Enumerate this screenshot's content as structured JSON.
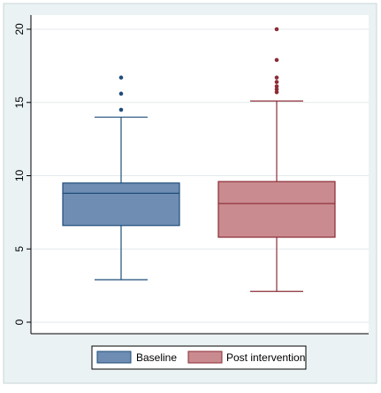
{
  "chart_data": {
    "type": "box",
    "title": "",
    "xlabel": "",
    "ylabel": "",
    "ylim": [
      0,
      20
    ],
    "yticks": [
      0,
      5,
      10,
      15,
      20
    ],
    "grid": "horizontal",
    "legend_position": "bottom",
    "series": [
      {
        "name": "Baseline",
        "color": "#6f8db3",
        "edge_color": "#1f4e79",
        "whisker_low": 2.9,
        "q1": 6.6,
        "median": 8.8,
        "q3": 9.5,
        "whisker_high": 14.0,
        "outliers": [
          14.5,
          15.6,
          16.7
        ]
      },
      {
        "name": "Post intervention",
        "color": "#c98b8f",
        "edge_color": "#8b2b35",
        "whisker_low": 2.1,
        "q1": 5.8,
        "median": 8.1,
        "q3": 9.6,
        "whisker_high": 15.1,
        "outliers": [
          15.7,
          15.9,
          16.1,
          16.4,
          16.7,
          17.9,
          20.0
        ]
      }
    ]
  }
}
